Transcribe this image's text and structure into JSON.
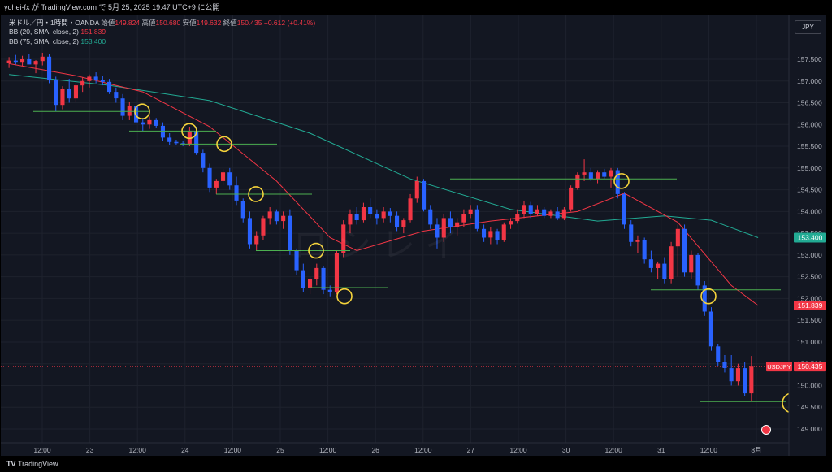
{
  "header": {
    "author": "yohei-fx",
    "published_text": "yohei-fx が TradingView.com で 5月 25, 2025 19:47 UTC+9 に公開"
  },
  "legend": {
    "symbol": "米ドル／円・1時間・OANDA",
    "o_label": "始値",
    "o": "149.824",
    "h_label": "高値",
    "h": "150.680",
    "l_label": "安値",
    "l": "149.632",
    "c_label": "終値",
    "c": "150.435",
    "change": "+0.612 (+0.41%)",
    "bb20_label": "BB (20, SMA, close, 2)",
    "bb20_value": "151.839",
    "bb75_label": "BB (75, SMA, close, 2)",
    "bb75_value": "153.400"
  },
  "currency_button": "JPY",
  "footer": {
    "brand": "TradingView",
    "logo": "TV"
  },
  "watermark": "ロシレイ",
  "colors": {
    "up": "#f23645",
    "down": "#2962ff",
    "bb20": "#f23645",
    "bb75": "#22ab94",
    "support": "#4caf50",
    "circle": "#f5d33b",
    "background": "#131722"
  },
  "chart_data": {
    "type": "candlestick",
    "symbol": "USDJPY",
    "interval": "1h",
    "price_axis": {
      "ticks": [
        "157.500",
        "157.000",
        "156.500",
        "156.000",
        "155.500",
        "155.000",
        "154.500",
        "154.000",
        "153.500",
        "153.000",
        "152.500",
        "152.000",
        "151.500",
        "151.000",
        "150.500",
        "150.000",
        "149.500",
        "149.000"
      ],
      "range": [
        148.85,
        158.3
      ]
    },
    "time_axis": [
      "12:00",
      "23",
      "12:00",
      "24",
      "12:00",
      "25",
      "12:00",
      "26",
      "12:00",
      "27",
      "12:00",
      "30",
      "12:00",
      "31",
      "12:00",
      "8月"
    ],
    "price_labels": [
      {
        "value": 153.4,
        "text": "153.400",
        "color": "#22ab94"
      },
      {
        "value": 151.839,
        "text": "151.839",
        "color": "#f23645"
      },
      {
        "value": 150.435,
        "text": "150.435",
        "tag": "USDJPY",
        "color": "#f23645"
      }
    ],
    "current_price": 150.435,
    "ohlc": [
      [
        157.42,
        157.55,
        157.3,
        157.47
      ],
      [
        157.47,
        157.6,
        157.38,
        157.44
      ],
      [
        157.44,
        157.58,
        157.35,
        157.5
      ],
      [
        157.5,
        157.62,
        157.42,
        157.38
      ],
      [
        157.38,
        157.48,
        157.18,
        157.46
      ],
      [
        157.46,
        157.65,
        157.36,
        157.56
      ],
      [
        157.56,
        157.62,
        156.95,
        157.02
      ],
      [
        157.02,
        157.1,
        156.3,
        156.45
      ],
      [
        156.45,
        156.88,
        156.35,
        156.82
      ],
      [
        156.82,
        157.05,
        156.5,
        156.6
      ],
      [
        156.6,
        156.95,
        156.52,
        156.9
      ],
      [
        156.9,
        157.08,
        156.75,
        157.0
      ],
      [
        157.0,
        157.15,
        156.85,
        157.1
      ],
      [
        157.1,
        157.2,
        156.95,
        157.02
      ],
      [
        157.02,
        157.12,
        156.9,
        156.98
      ],
      [
        156.98,
        157.05,
        156.7,
        156.75
      ],
      [
        156.75,
        156.85,
        156.5,
        156.6
      ],
      [
        156.6,
        156.7,
        156.1,
        156.2
      ],
      [
        156.2,
        156.52,
        156.1,
        156.42
      ],
      [
        156.42,
        156.62,
        156.0,
        156.05
      ],
      [
        156.05,
        156.15,
        155.85,
        156.0
      ],
      [
        156.0,
        156.18,
        155.9,
        156.1
      ],
      [
        156.1,
        156.15,
        155.92,
        155.97
      ],
      [
        155.97,
        156.05,
        155.62,
        155.7
      ],
      [
        155.7,
        155.8,
        155.52,
        155.6
      ],
      [
        155.6,
        155.65,
        155.52,
        155.57
      ],
      [
        155.57,
        155.62,
        155.5,
        155.55
      ],
      [
        155.55,
        155.95,
        155.5,
        155.85
      ],
      [
        155.85,
        155.95,
        155.3,
        155.35
      ],
      [
        155.35,
        155.42,
        154.9,
        155.0
      ],
      [
        155.0,
        155.1,
        154.45,
        154.55
      ],
      [
        154.55,
        154.75,
        154.4,
        154.7
      ],
      [
        154.7,
        154.98,
        154.6,
        154.9
      ],
      [
        154.9,
        155.0,
        154.5,
        154.6
      ],
      [
        154.6,
        154.8,
        154.15,
        154.25
      ],
      [
        154.25,
        154.3,
        153.75,
        153.85
      ],
      [
        153.85,
        154.0,
        153.15,
        153.25
      ],
      [
        153.25,
        153.55,
        153.1,
        153.45
      ],
      [
        153.45,
        153.9,
        153.35,
        153.85
      ],
      [
        153.85,
        154.1,
        153.7,
        154.0
      ],
      [
        154.0,
        154.05,
        153.7,
        153.78
      ],
      [
        153.78,
        154.0,
        153.6,
        153.9
      ],
      [
        153.9,
        154.05,
        153.0,
        153.1
      ],
      [
        153.1,
        153.15,
        152.55,
        152.65
      ],
      [
        152.65,
        152.8,
        152.15,
        152.25
      ],
      [
        152.25,
        152.5,
        152.1,
        152.45
      ],
      [
        152.45,
        152.8,
        152.3,
        152.7
      ],
      [
        152.7,
        152.75,
        152.1,
        152.2
      ],
      [
        152.2,
        152.3,
        152.05,
        152.15
      ],
      [
        152.15,
        153.1,
        152.1,
        153.05
      ],
      [
        153.05,
        153.8,
        152.95,
        153.7
      ],
      [
        153.7,
        154.05,
        153.5,
        153.95
      ],
      [
        153.95,
        154.1,
        153.7,
        153.8
      ],
      [
        153.8,
        154.2,
        153.75,
        154.1
      ],
      [
        154.1,
        154.3,
        153.85,
        153.95
      ],
      [
        153.95,
        154.05,
        153.7,
        153.85
      ],
      [
        153.85,
        154.1,
        153.75,
        154.0
      ],
      [
        154.0,
        154.08,
        153.75,
        153.9
      ],
      [
        153.9,
        154.0,
        153.55,
        153.65
      ],
      [
        153.65,
        153.85,
        153.5,
        153.8
      ],
      [
        153.8,
        154.4,
        153.75,
        154.3
      ],
      [
        154.3,
        154.8,
        154.2,
        154.7
      ],
      [
        154.7,
        154.75,
        154.0,
        154.05
      ],
      [
        154.05,
        154.15,
        153.6,
        153.7
      ],
      [
        153.7,
        153.85,
        153.15,
        153.4
      ],
      [
        153.4,
        153.95,
        153.3,
        153.85
      ],
      [
        153.85,
        154.0,
        153.5,
        153.65
      ],
      [
        153.65,
        153.85,
        153.45,
        153.75
      ],
      [
        153.75,
        154.05,
        153.65,
        153.95
      ],
      [
        153.95,
        154.15,
        153.85,
        154.05
      ],
      [
        154.05,
        154.15,
        153.55,
        153.6
      ],
      [
        153.6,
        153.7,
        153.3,
        153.4
      ],
      [
        153.4,
        153.65,
        153.25,
        153.55
      ],
      [
        153.55,
        153.6,
        153.25,
        153.35
      ],
      [
        153.35,
        153.75,
        153.3,
        153.7
      ],
      [
        153.7,
        153.85,
        153.6,
        153.78
      ],
      [
        153.78,
        154.05,
        153.72,
        153.95
      ],
      [
        153.95,
        154.25,
        153.85,
        154.15
      ],
      [
        154.15,
        154.22,
        153.85,
        153.95
      ],
      [
        153.95,
        154.15,
        153.9,
        154.05
      ],
      [
        154.05,
        154.1,
        153.85,
        153.9
      ],
      [
        153.9,
        154.05,
        153.85,
        154.0
      ],
      [
        154.0,
        154.1,
        153.8,
        153.85
      ],
      [
        153.85,
        154.1,
        153.8,
        154.05
      ],
      [
        154.05,
        154.6,
        154.0,
        154.55
      ],
      [
        154.55,
        154.9,
        154.5,
        154.85
      ],
      [
        154.85,
        155.2,
        154.7,
        154.9
      ],
      [
        154.9,
        155.0,
        154.7,
        154.75
      ],
      [
        154.75,
        154.95,
        154.65,
        154.9
      ],
      [
        154.9,
        154.98,
        154.75,
        154.8
      ],
      [
        154.8,
        155.0,
        154.55,
        154.95
      ],
      [
        154.95,
        155.0,
        154.3,
        154.4
      ],
      [
        154.4,
        154.45,
        153.6,
        153.7
      ],
      [
        153.7,
        153.8,
        153.2,
        153.3
      ],
      [
        153.3,
        153.45,
        153.05,
        153.35
      ],
      [
        153.35,
        153.4,
        152.8,
        152.9
      ],
      [
        152.9,
        153.1,
        152.6,
        152.7
      ],
      [
        152.7,
        152.85,
        152.45,
        152.8
      ],
      [
        152.8,
        152.95,
        152.35,
        152.45
      ],
      [
        152.45,
        153.3,
        152.35,
        153.2
      ],
      [
        153.2,
        153.7,
        152.5,
        153.6
      ],
      [
        153.6,
        153.7,
        152.5,
        152.6
      ],
      [
        152.6,
        153.1,
        152.45,
        153.0
      ],
      [
        153.0,
        153.05,
        152.2,
        152.3
      ],
      [
        152.3,
        152.4,
        151.6,
        151.7
      ],
      [
        151.7,
        151.8,
        150.8,
        150.9
      ],
      [
        150.9,
        150.95,
        150.45,
        150.55
      ],
      [
        150.55,
        150.7,
        150.3,
        150.4
      ],
      [
        150.4,
        150.7,
        150.0,
        150.1
      ],
      [
        150.1,
        150.5,
        150.0,
        150.4
      ],
      [
        150.4,
        150.55,
        149.75,
        149.82
      ],
      [
        149.82,
        150.68,
        149.63,
        150.435
      ]
    ],
    "bb20_middle": [
      [
        0,
        157.4
      ],
      [
        10,
        157.12
      ],
      [
        20,
        156.75
      ],
      [
        30,
        155.95
      ],
      [
        40,
        154.7
      ],
      [
        48,
        153.4
      ],
      [
        52,
        153.1
      ],
      [
        62,
        153.55
      ],
      [
        72,
        153.78
      ],
      [
        85,
        154.0
      ],
      [
        92,
        154.42
      ],
      [
        100,
        153.75
      ],
      [
        108,
        152.3
      ],
      [
        112,
        151.84
      ]
    ],
    "bb75_middle": [
      [
        0,
        157.15
      ],
      [
        15,
        156.9
      ],
      [
        30,
        156.55
      ],
      [
        45,
        155.8
      ],
      [
        60,
        154.75
      ],
      [
        75,
        154.05
      ],
      [
        88,
        153.78
      ],
      [
        98,
        153.9
      ],
      [
        105,
        153.8
      ],
      [
        112,
        153.4
      ]
    ],
    "support_lines": [
      {
        "price": 156.3,
        "x1": 40,
        "x2": 183
      },
      {
        "price": 155.85,
        "x1": 158,
        "x2": 265
      },
      {
        "price": 155.55,
        "x1": 220,
        "x2": 340
      },
      {
        "price": 154.4,
        "x1": 265,
        "x2": 383
      },
      {
        "price": 153.1,
        "x1": 314,
        "x2": 430
      },
      {
        "price": 152.25,
        "x1": 380,
        "x2": 477
      },
      {
        "price": 154.75,
        "x1": 553,
        "x2": 832
      },
      {
        "price": 152.2,
        "x1": 800,
        "x2": 960
      },
      {
        "price": 149.63,
        "x1": 860,
        "x2": 966
      }
    ],
    "highlight_circles": [
      {
        "price": 156.3,
        "x": 174
      },
      {
        "price": 155.85,
        "x": 232
      },
      {
        "price": 155.55,
        "x": 275
      },
      {
        "price": 154.4,
        "x": 314
      },
      {
        "price": 153.1,
        "x": 388
      },
      {
        "price": 152.05,
        "x": 423
      },
      {
        "price": 154.7,
        "x": 764
      },
      {
        "price": 152.05,
        "x": 871
      },
      {
        "price": 149.6,
        "x": 974,
        "large": true
      }
    ]
  }
}
